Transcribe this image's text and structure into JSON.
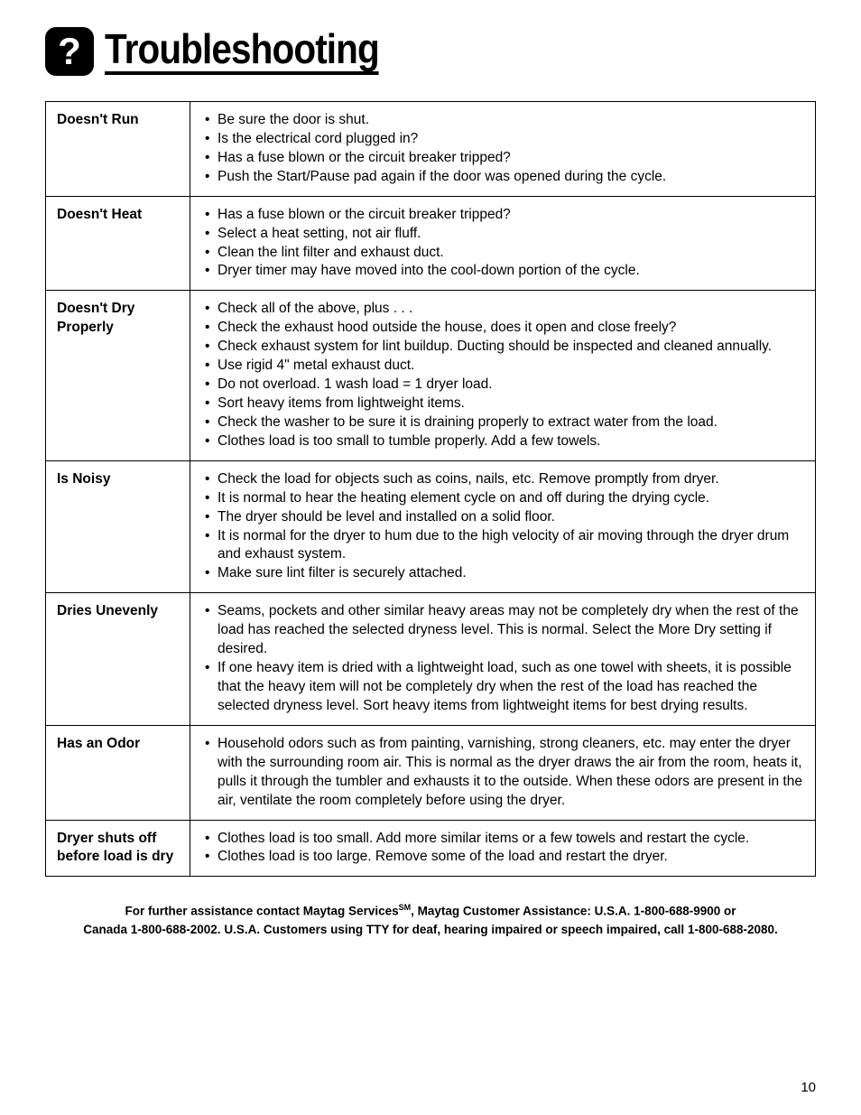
{
  "page": {
    "title": "Troubleshooting",
    "page_number": "10"
  },
  "rows": [
    {
      "label": "Doesn't Run",
      "items": [
        "Be sure the door is shut.",
        "Is the electrical cord plugged in?",
        "Has a fuse blown or the circuit breaker tripped?",
        "Push the Start/Pause pad again if the door was opened during the cycle."
      ]
    },
    {
      "label": "Doesn't Heat",
      "items": [
        "Has a fuse blown or the circuit breaker tripped?",
        "Select a heat setting, not air fluff.",
        "Clean the lint filter and exhaust duct.",
        "Dryer timer may have moved into the cool-down portion of the cycle."
      ]
    },
    {
      "label": "Doesn't Dry Properly",
      "items": [
        "Check all of the above, plus . . .",
        "Check the exhaust hood outside the house, does it open and close freely?",
        "Check exhaust system for lint buildup. Ducting should be inspected and cleaned annually.",
        "Use rigid 4\" metal exhaust duct.",
        "Do not overload. 1 wash load = 1 dryer load.",
        "Sort heavy items from lightweight items.",
        "Check the washer to be sure it is draining properly to extract water from the load.",
        "Clothes load is too small to tumble properly. Add a few towels."
      ]
    },
    {
      "label": "Is Noisy",
      "items": [
        "Check the load for objects such as coins, nails, etc. Remove promptly from dryer.",
        "It is normal to hear the heating element cycle on and off during the drying cycle.",
        "The dryer should be level and installed on a solid floor.",
        "It is normal for the dryer to hum due to the high velocity of air moving through the dryer drum and exhaust system.",
        "Make sure lint filter is securely attached."
      ]
    },
    {
      "label": "Dries Unevenly",
      "items": [
        "Seams, pockets and other similar heavy areas may not be completely dry when the rest of the load has reached the selected dryness level. This is normal. Select the More Dry setting if desired.",
        "If one heavy item is dried with a lightweight load, such as one towel with sheets, it is possible that the heavy item will not be completely dry when the rest of the load has reached the selected dryness level. Sort heavy items from lightweight items for best drying results."
      ]
    },
    {
      "label": "Has an Odor",
      "items": [
        "Household odors such as from painting, varnishing, strong cleaners, etc. may enter the dryer with the surrounding room air. This is normal as the dryer draws the air from the room, heats it, pulls it through the tumbler and exhausts it to the outside. When these odors are present in the air, ventilate the room completely before using the dryer."
      ]
    },
    {
      "label": "Dryer shuts off before load is dry",
      "items": [
        "Clothes load is too small. Add more similar items or a few towels and restart the cycle.",
        "Clothes load is too large. Remove some of the load and restart the dryer."
      ]
    }
  ],
  "footer": {
    "line1_a": "For further assistance contact Maytag Services",
    "line1_sm": "SM",
    "line1_b": ", Maytag Customer Assistance:  U.S.A. 1-800-688-9900 or",
    "line2": "Canada 1-800-688-2002.  U.S.A. Customers using TTY for deaf, hearing impaired or speech impaired, call 1-800-688-2080."
  }
}
